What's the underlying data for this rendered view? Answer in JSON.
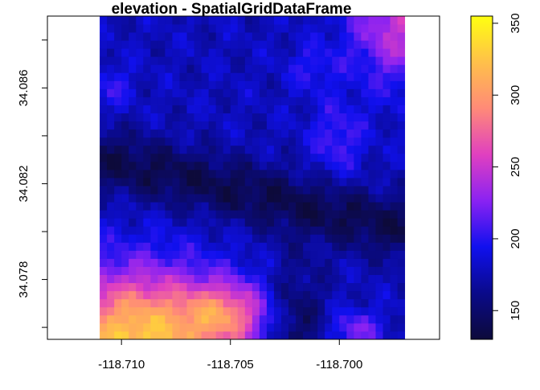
{
  "chart_data": {
    "type": "heatmap",
    "title": "elevation - SpatialGridDataFrame",
    "xlabel": "",
    "ylabel": "",
    "xlim": [
      -118.7134,
      -118.6954
    ],
    "ylim": [
      34.0755,
      34.089
    ],
    "x_ticks": [
      -118.71,
      -118.705,
      -118.7
    ],
    "x_tick_labels": [
      "-118.710",
      "-118.705",
      "-118.700"
    ],
    "y_ticks": [
      34.076,
      34.078,
      34.08,
      34.082,
      34.084,
      34.086,
      34.088
    ],
    "y_tick_labels": [
      "",
      "34.078",
      "",
      "34.082",
      "",
      "34.086",
      ""
    ],
    "grid_extent": {
      "xmin": -118.711,
      "xmax": -118.697,
      "ymin": 34.0755,
      "ymax": 34.089
    },
    "grid_size": {
      "cols": 42,
      "rows": 40
    },
    "value_range": [
      130,
      355
    ],
    "colorbar": {
      "ticks": [
        150,
        200,
        250,
        300,
        350
      ],
      "tick_labels": [
        "150",
        "200",
        "250",
        "300",
        "350"
      ],
      "min": 130,
      "max": 355,
      "stops": [
        "#0d0a3a",
        "#0a0a8a",
        "#1010ee",
        "#8a22f2",
        "#e040c0",
        "#ff8a78",
        "#ffc04a",
        "#ffff10"
      ]
    },
    "grid": false,
    "legend": "right"
  }
}
